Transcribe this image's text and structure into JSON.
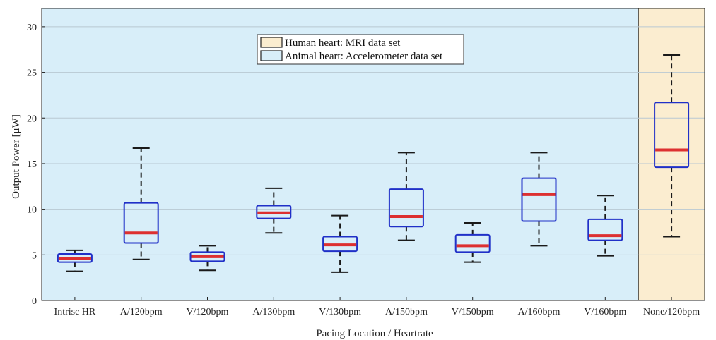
{
  "chart_data": {
    "type": "box",
    "xlabel": "Pacing Location / Heartrate",
    "ylabel": "Output Power [μW]",
    "ylim": [
      0,
      32
    ],
    "yticks": [
      0,
      5,
      10,
      15,
      20,
      25,
      30
    ],
    "grid": "horizontal",
    "legend": {
      "placement": "top-center",
      "entries": [
        {
          "label": "Human heart: MRI data set",
          "color": "#fbedd0"
        },
        {
          "label": "Animal heart: Accelerometer data set",
          "color": "#d8eef9"
        }
      ]
    },
    "colors": {
      "animal_bg": "#d8eef9",
      "human_bg": "#fbedd0",
      "box_stroke": "#2030c8",
      "median": "#dd3030",
      "whisker": "#1a1a1a"
    },
    "categories": [
      "Intrisc HR",
      "A/120bpm",
      "V/120bpm",
      "A/130bpm",
      "V/130bpm",
      "A/150bpm",
      "V/150bpm",
      "A/160bpm",
      "V/160bpm",
      "None/120bpm"
    ],
    "boxes": [
      {
        "min": 3.2,
        "q1": 4.2,
        "median": 4.6,
        "q3": 5.1,
        "max": 5.5,
        "dataset": "animal"
      },
      {
        "min": 4.5,
        "q1": 6.3,
        "median": 7.4,
        "q3": 10.7,
        "max": 16.7,
        "dataset": "animal"
      },
      {
        "min": 3.3,
        "q1": 4.3,
        "median": 4.8,
        "q3": 5.3,
        "max": 6.0,
        "dataset": "animal"
      },
      {
        "min": 7.4,
        "q1": 9.0,
        "median": 9.6,
        "q3": 10.4,
        "max": 12.3,
        "dataset": "animal"
      },
      {
        "min": 3.1,
        "q1": 5.4,
        "median": 6.1,
        "q3": 7.0,
        "max": 9.3,
        "dataset": "animal"
      },
      {
        "min": 6.6,
        "q1": 8.1,
        "median": 9.2,
        "q3": 12.2,
        "max": 16.2,
        "dataset": "animal"
      },
      {
        "min": 4.2,
        "q1": 5.3,
        "median": 6.0,
        "q3": 7.2,
        "max": 8.5,
        "dataset": "animal"
      },
      {
        "min": 6.0,
        "q1": 8.7,
        "median": 11.6,
        "q3": 13.4,
        "max": 16.2,
        "dataset": "animal"
      },
      {
        "min": 4.9,
        "q1": 6.6,
        "median": 7.1,
        "q3": 8.9,
        "max": 11.5,
        "dataset": "animal"
      },
      {
        "min": 7.0,
        "q1": 14.6,
        "median": 16.5,
        "q3": 21.7,
        "max": 26.9,
        "dataset": "human"
      }
    ]
  }
}
